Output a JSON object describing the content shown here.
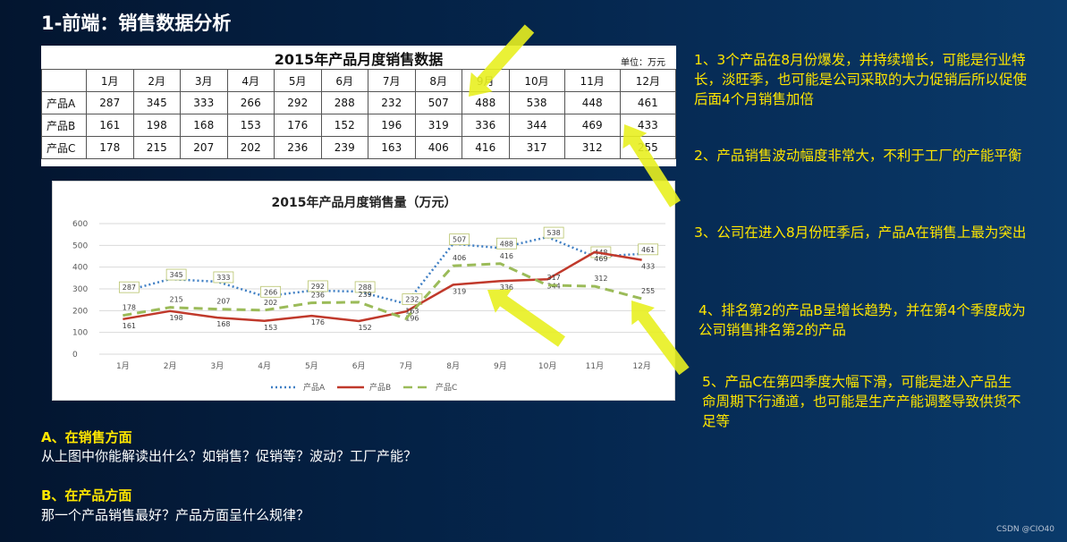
{
  "page": {
    "title": "1-前端：销售数据分析",
    "credit": "CSDN @CIO40"
  },
  "table": {
    "title": "2015年产品月度销售数据",
    "unit": "单位：万元",
    "months": [
      "1月",
      "2月",
      "3月",
      "4月",
      "5月",
      "6月",
      "7月",
      "8月",
      "9月",
      "10月",
      "11月",
      "12月"
    ],
    "rows": [
      {
        "name": "产品A",
        "values": [
          287,
          345,
          333,
          266,
          292,
          288,
          232,
          507,
          488,
          538,
          448,
          461
        ]
      },
      {
        "name": "产品B",
        "values": [
          161,
          198,
          168,
          153,
          176,
          152,
          196,
          319,
          336,
          344,
          469,
          433
        ]
      },
      {
        "name": "产品C",
        "values": [
          178,
          215,
          207,
          202,
          236,
          239,
          163,
          406,
          416,
          317,
          312,
          255
        ]
      }
    ]
  },
  "chart_data": {
    "type": "line",
    "title": "2015年产品月度销售量（万元）",
    "categories": [
      "1月",
      "2月",
      "3月",
      "4月",
      "5月",
      "6月",
      "7月",
      "8月",
      "9月",
      "10月",
      "11月",
      "12月"
    ],
    "ylim": [
      0,
      600
    ],
    "yticks": [
      0,
      100,
      200,
      300,
      400,
      500,
      600
    ],
    "grid": true,
    "legend_position": "bottom",
    "series": [
      {
        "name": "产品A",
        "values": [
          287,
          345,
          333,
          266,
          292,
          288,
          232,
          507,
          488,
          538,
          448,
          461
        ],
        "color": "#3f7fc4",
        "style": "dotted"
      },
      {
        "name": "产品B",
        "values": [
          161,
          198,
          168,
          153,
          176,
          152,
          196,
          319,
          336,
          344,
          469,
          433
        ],
        "color": "#c0392b",
        "style": "solid"
      },
      {
        "name": "产品C",
        "values": [
          178,
          215,
          207,
          202,
          236,
          239,
          163,
          406,
          416,
          317,
          312,
          255
        ],
        "color": "#9bbb59",
        "style": "dashed"
      }
    ]
  },
  "notes": [
    "1、3个产品在8月份爆发，并持续增长，可能是行业特长，淡旺季，也可能是公司采取的大力促销后所以促使后面4个月销售加倍",
    "2、产品销售波动幅度非常大，不利于工厂的产能平衡",
    "3、公司在进入8月份旺季后，产品A在销售上最为突出",
    "4、排名第2的产品B呈增长趋势，并在第4个季度成为公司销售排名第2的产品",
    "5、产品C在第四季度大幅下滑，可能是进入产品生命周期下行通道，也可能是生产产能调整导致供货不足等"
  ],
  "sections": {
    "a_title": "A、在销售方面",
    "a_body": "从上图中你能解读出什么？如销售？促销等？波动？工厂产能？",
    "b_title": "B、在产品方面",
    "b_body": "那一个产品销售最好？产品方面呈什么规律？"
  },
  "colors": {
    "note_text": "#ffe600",
    "arrow": "#e8f020"
  }
}
